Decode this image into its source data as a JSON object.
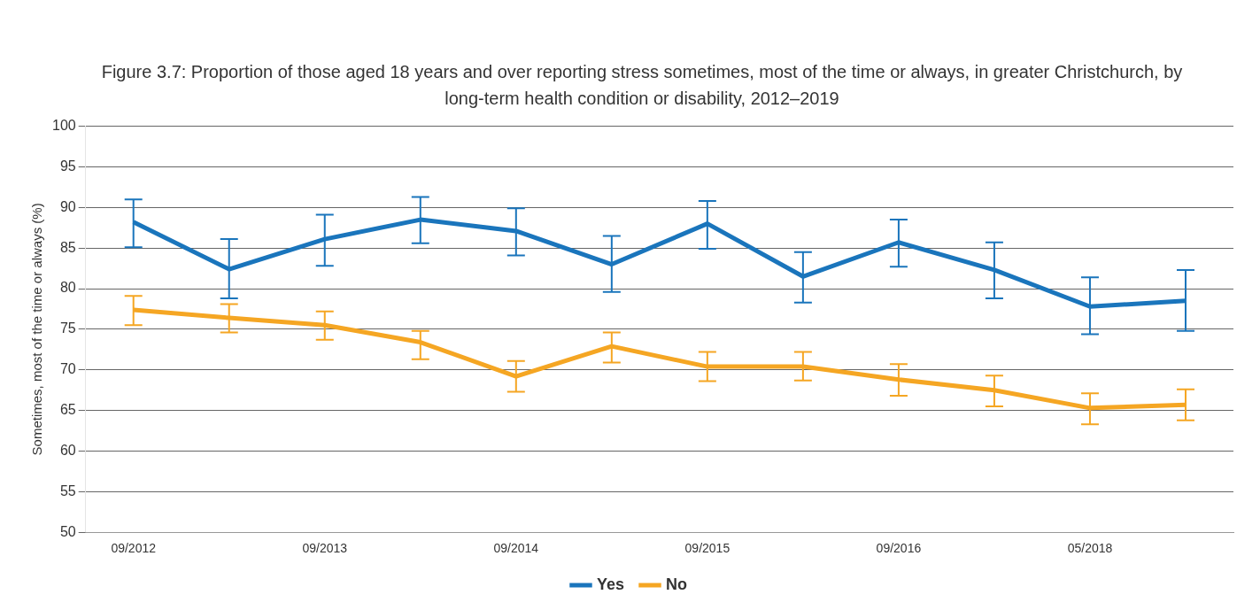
{
  "chart_data": {
    "type": "line",
    "title": "Figure 3.7: Proportion of those aged 18 years and over reporting stress sometimes, most of the time or always, in greater Christchurch, by long-term health condition or disability, 2012–2019",
    "ylabel": "Sometimes, most of the time or always (%)",
    "categories": [
      "09/2012",
      null,
      "09/2013",
      null,
      "09/2014",
      null,
      "09/2015",
      null,
      "09/2016",
      null,
      "05/2018",
      null
    ],
    "series": [
      {
        "name": "Yes",
        "color": "#1a75bc",
        "values": [
          88.2,
          82.4,
          86.1,
          88.5,
          87.1,
          83.0,
          88.0,
          81.5,
          85.7,
          82.3,
          77.8,
          78.5
        ],
        "errors": [
          [
            85.1,
            91.0
          ],
          [
            78.8,
            86.1
          ],
          [
            82.8,
            89.1
          ],
          [
            85.6,
            91.3
          ],
          [
            84.1,
            89.9
          ],
          [
            79.6,
            86.5
          ],
          [
            84.9,
            90.8
          ],
          [
            78.3,
            84.5
          ],
          [
            82.7,
            88.5
          ],
          [
            78.8,
            85.7
          ],
          [
            74.4,
            81.4
          ],
          [
            74.8,
            82.3
          ]
        ]
      },
      {
        "name": "No",
        "color": "#f5a623",
        "values": [
          77.4,
          76.4,
          75.5,
          73.4,
          69.2,
          72.9,
          70.4,
          70.4,
          68.8,
          67.5,
          65.3,
          65.7
        ],
        "errors": [
          [
            75.5,
            79.1
          ],
          [
            74.6,
            78.1
          ],
          [
            73.7,
            77.2
          ],
          [
            71.3,
            74.8
          ],
          [
            67.3,
            71.1
          ],
          [
            70.9,
            74.6
          ],
          [
            68.6,
            72.2
          ],
          [
            68.7,
            72.2
          ],
          [
            66.8,
            70.7
          ],
          [
            65.5,
            69.3
          ],
          [
            63.3,
            67.1
          ],
          [
            63.8,
            67.6
          ]
        ]
      }
    ],
    "ylim": [
      50,
      100
    ],
    "yticks": [
      50,
      55,
      60,
      65,
      70,
      75,
      80,
      85,
      90,
      95,
      100
    ],
    "grid": "y",
    "legend": "bottom",
    "marker": "none",
    "line_style": "solid"
  }
}
